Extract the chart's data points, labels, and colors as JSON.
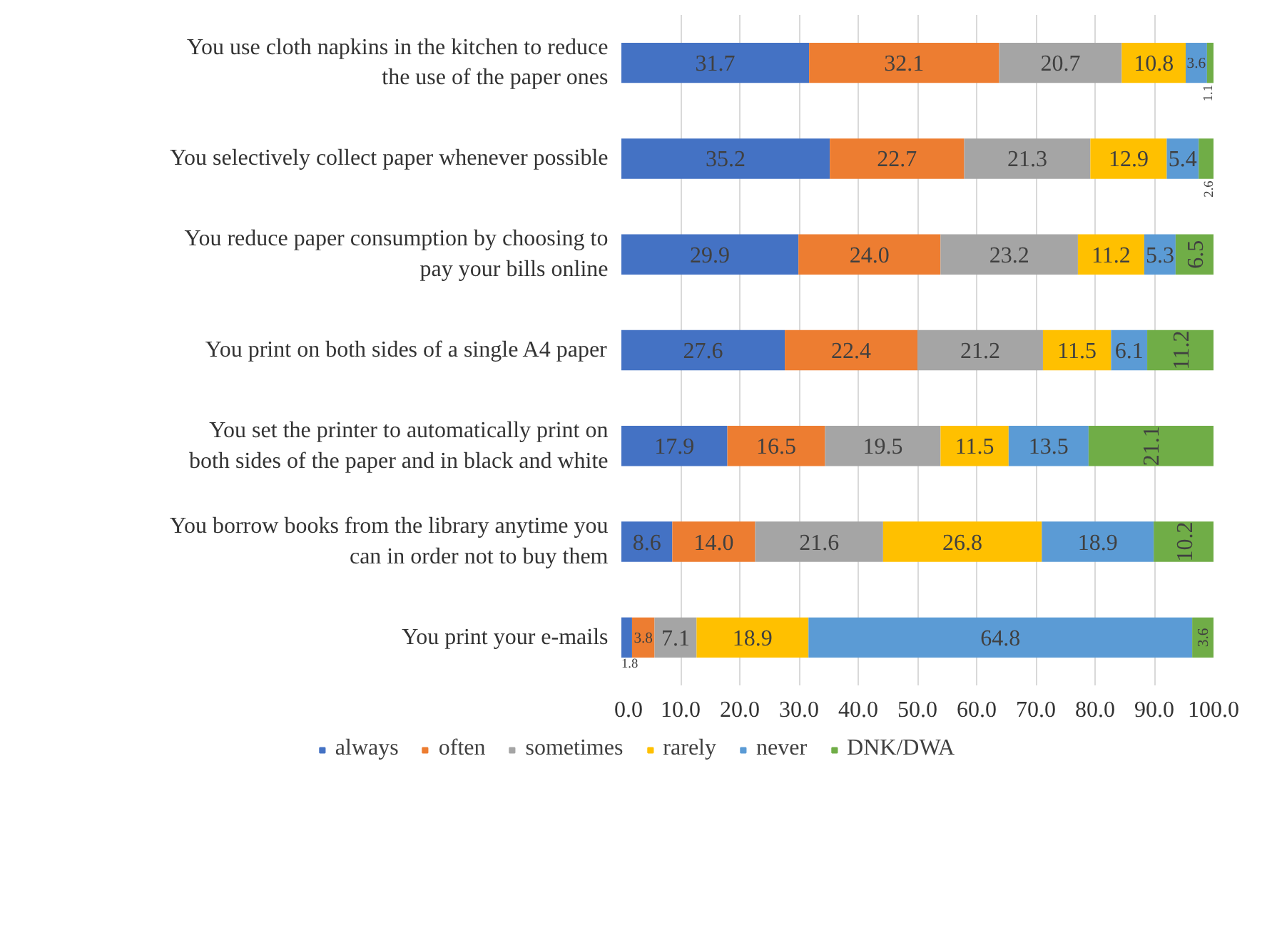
{
  "chart_data": {
    "type": "bar",
    "orientation": "horizontal",
    "stacked": true,
    "grid": "x",
    "legend": "bottom",
    "categories": [
      "You use cloth napkins in the kitchen to reduce\nthe use of the paper ones",
      "You selectively collect paper whenever possible",
      "You reduce paper consumption by choosing to\npay your bills online",
      "You print on both sides of a single A4 paper",
      "You set the printer to automatically print on\nboth sides of the paper and in black and white",
      "You borrow books from the library anytime you\ncan in order not to buy them",
      "You print your e-mails"
    ],
    "xlim": [
      0,
      100
    ],
    "xticks": [
      {
        "value": 0,
        "label": "0.0"
      },
      {
        "value": 10,
        "label": "10.0"
      },
      {
        "value": 20,
        "label": "20.0"
      },
      {
        "value": 30,
        "label": "30.0"
      },
      {
        "value": 40,
        "label": "40.0"
      },
      {
        "value": 50,
        "label": "50.0"
      },
      {
        "value": 60,
        "label": "60.0"
      },
      {
        "value": 70,
        "label": "70.0"
      },
      {
        "value": 80,
        "label": "80.0"
      },
      {
        "value": 90,
        "label": "90.0"
      },
      {
        "value": 100,
        "label": "100.0"
      }
    ],
    "series": [
      {
        "name": "always",
        "color": "#4472c4",
        "values": [
          31.7,
          35.2,
          29.9,
          27.6,
          17.9,
          8.6,
          1.8
        ],
        "value_labels": [
          "31.7",
          "35.2",
          "29.9",
          "27.6",
          "17.9",
          "8.6",
          "1.8"
        ]
      },
      {
        "name": "often",
        "color": "#ed7d31",
        "values": [
          32.1,
          22.7,
          24.0,
          22.4,
          16.5,
          14.0,
          3.8
        ],
        "value_labels": [
          "32.1",
          "22.7",
          "24.0",
          "22.4",
          "16.5",
          "14.0",
          "3.8"
        ]
      },
      {
        "name": "sometimes",
        "color": "#a5a5a5",
        "values": [
          20.7,
          21.3,
          23.2,
          21.2,
          19.5,
          21.6,
          7.1
        ],
        "value_labels": [
          "20.7",
          "21.3",
          "23.2",
          "21.2",
          "19.5",
          "21.6",
          "7.1"
        ]
      },
      {
        "name": "rarely",
        "color": "#ffc000",
        "values": [
          10.8,
          12.9,
          11.2,
          11.5,
          11.5,
          26.8,
          18.9
        ],
        "value_labels": [
          "10.8",
          "12.9",
          "11.2",
          "11.5",
          "11.5",
          "26.8",
          "18.9"
        ]
      },
      {
        "name": "never",
        "color": "#5b9bd5",
        "values": [
          3.6,
          5.4,
          5.3,
          6.1,
          13.5,
          18.9,
          64.8
        ],
        "value_labels": [
          "3.6",
          "5.4",
          "5.3",
          "6.1",
          "13.5",
          "18.9",
          "64.8"
        ]
      },
      {
        "name": "DNK/DWA",
        "color": "#70ad47",
        "values": [
          1.1,
          2.6,
          6.5,
          11.2,
          21.1,
          10.2,
          3.6
        ],
        "value_labels": [
          "1.1",
          "2.6",
          "6.5",
          "11.2",
          "21.1",
          "10.2",
          "3.6"
        ]
      }
    ]
  }
}
